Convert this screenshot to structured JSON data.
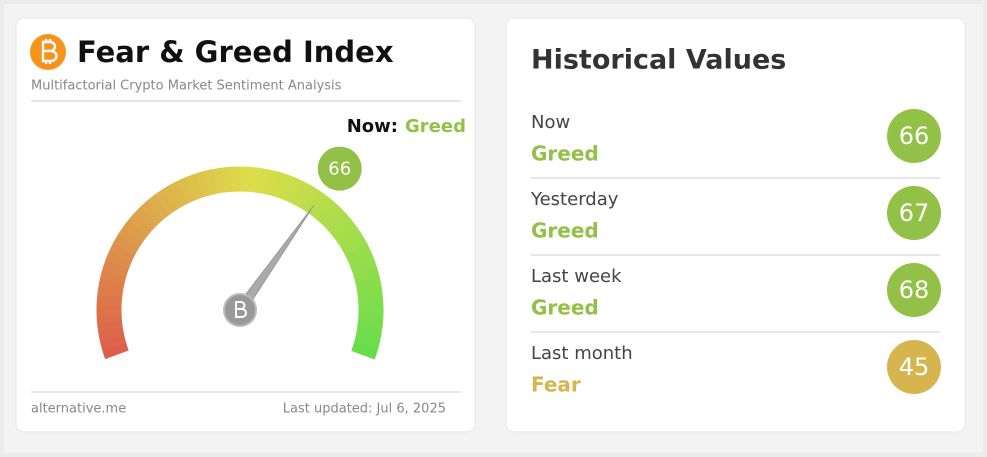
{
  "left_card": {
    "title": "Fear & Greed Index",
    "subtitle": "Multifactorial Crypto Market Sentiment Analysis",
    "now_label": "Now:",
    "now_class": "Greed",
    "now_color": "#93c047",
    "gauge": {
      "value": 66,
      "range": [
        0,
        100
      ],
      "color": "#93c047"
    },
    "footer_source": "alternative.me",
    "footer_updated": "Last updated: Jul 6, 2025"
  },
  "right_card": {
    "title": "Historical Values",
    "rows": [
      {
        "label": "Now",
        "class": "Greed",
        "value": 66,
        "color": "#93c047"
      },
      {
        "label": "Yesterday",
        "class": "Greed",
        "value": 67,
        "color": "#93c047"
      },
      {
        "label": "Last week",
        "class": "Greed",
        "value": 68,
        "color": "#93c047"
      },
      {
        "label": "Last month",
        "class": "Fear",
        "value": 45,
        "color": "#d6b54f"
      }
    ]
  }
}
